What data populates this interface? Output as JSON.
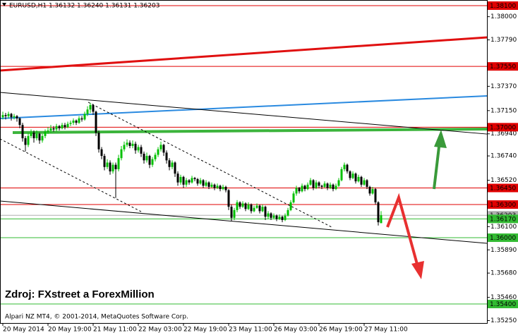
{
  "chart_data": {
    "type": "candlestick",
    "header": "EURUSD,H1  1.36132 1.36240 1.36131 1.36203",
    "annotation": "Zdroj: FXstreet a ForexMillion",
    "copyright": "Alpari NZ MT4, © 2001-2014, MetaQuotes Software Corp.",
    "up_color": "#00c000",
    "down_color": "#000000",
    "xlim": [
      -1,
      171.5
    ],
    "ylim": [
      1.35228,
      1.38151
    ],
    "xticks": [
      {
        "value": 0,
        "label": "20 May 2014"
      },
      {
        "value": 16,
        "label": "20 May 19:00"
      },
      {
        "value": 32,
        "label": "21 May 11:00"
      },
      {
        "value": 48,
        "label": "22 May 03:00"
      },
      {
        "value": 64,
        "label": "22 May 19:00"
      },
      {
        "value": 80,
        "label": "23 May 11:00"
      },
      {
        "value": 96,
        "label": "26 May 03:00"
      },
      {
        "value": 112,
        "label": "26 May 19:00"
      },
      {
        "value": 128,
        "label": "27 May 11:00"
      }
    ],
    "yticks": [
      {
        "value": 1.38,
        "label": "1.38000"
      },
      {
        "value": 1.3779,
        "label": "1.37790"
      },
      {
        "value": 1.3737,
        "label": "1.37370"
      },
      {
        "value": 1.3715,
        "label": "1.37150"
      },
      {
        "value": 1.3694,
        "label": "1.36940"
      },
      {
        "value": 1.3674,
        "label": "1.36740"
      },
      {
        "value": 1.3652,
        "label": "1.36520"
      },
      {
        "value": 1.361,
        "label": "1.36100"
      },
      {
        "value": 1.3589,
        "label": "1.35890"
      },
      {
        "value": 1.3568,
        "label": "1.35680"
      },
      {
        "value": 1.3546,
        "label": "1.35460"
      },
      {
        "value": 1.3525,
        "label": "1.35250"
      }
    ],
    "levels": [
      {
        "value": 1.381,
        "label": "1.38100",
        "color": "#e00000"
      },
      {
        "value": 1.3755,
        "label": "1.37550",
        "color": "#e00000"
      },
      {
        "value": 1.37,
        "label": "1.37000",
        "color": "#e00000"
      },
      {
        "value": 1.3645,
        "label": "1.36450",
        "color": "#e00000"
      },
      {
        "value": 1.363,
        "label": "1.36300",
        "color": "#e00000"
      },
      {
        "value": 1.36203,
        "label": "1.36203",
        "color": "#b0b0b0"
      },
      {
        "value": 1.3617,
        "label": "1.36170",
        "color": "#33bb33"
      },
      {
        "value": 1.36,
        "label": "1.36000",
        "color": "#33bb33"
      },
      {
        "value": 1.354,
        "label": "1.35400",
        "color": "#33bb33"
      }
    ],
    "trendlines": [
      {
        "x": [
          -1,
          171.5
        ],
        "y": [
          1.37513,
          1.37813
        ],
        "color": "#e01010",
        "width": 3,
        "dashed": false
      },
      {
        "x": [
          -1,
          171.5
        ],
        "y": [
          1.37079,
          1.37283
        ],
        "color": "#2a8ae0",
        "width": 2,
        "dashed": false
      },
      {
        "x": [
          3.5,
          171.5
        ],
        "y": [
          1.36951,
          1.36983
        ],
        "color": "#3cb43c",
        "width": 4,
        "dashed": false
      },
      {
        "x": [
          -1,
          171.5
        ],
        "y": [
          1.37315,
          1.36938
        ],
        "color": "#000000",
        "width": 1,
        "dashed": false
      },
      {
        "x": [
          -1,
          171.5
        ],
        "y": [
          1.36332,
          1.35949
        ],
        "color": "#000000",
        "width": 1,
        "dashed": false
      },
      {
        "x": [
          30.25,
          116.5
        ],
        "y": [
          1.37226,
          1.36096
        ],
        "color": "#000000",
        "width": 1,
        "dashed": true
      },
      {
        "x": [
          -1,
          49
        ],
        "y": [
          1.36894,
          1.36236
        ],
        "color": "#000000",
        "width": 1,
        "dashed": true
      }
    ],
    "ohlc": [
      [
        1.3709,
        1.3714,
        1.3707,
        1.3711
      ],
      [
        1.3711,
        1.3713,
        1.3707,
        1.371
      ],
      [
        1.371,
        1.3714,
        1.3708,
        1.3712
      ],
      [
        1.3712,
        1.3713,
        1.3706,
        1.3709
      ],
      [
        1.3709,
        1.3712,
        1.3707,
        1.371
      ],
      [
        1.371,
        1.3711,
        1.3705,
        1.3708
      ],
      [
        1.3708,
        1.3709,
        1.3699,
        1.3702
      ],
      [
        1.3702,
        1.3704,
        1.3687,
        1.369
      ],
      [
        1.369,
        1.3692,
        1.3678,
        1.3684
      ],
      [
        1.3684,
        1.3695,
        1.3682,
        1.3692
      ],
      [
        1.3692,
        1.3698,
        1.369,
        1.3695
      ],
      [
        1.3695,
        1.3697,
        1.3686,
        1.369
      ],
      [
        1.369,
        1.3697,
        1.3688,
        1.3694
      ],
      [
        1.3694,
        1.3695,
        1.3685,
        1.3688
      ],
      [
        1.3688,
        1.3694,
        1.3686,
        1.3692
      ],
      [
        1.3692,
        1.3698,
        1.369,
        1.3696
      ],
      [
        1.3696,
        1.37,
        1.3694,
        1.3697
      ],
      [
        1.3697,
        1.3702,
        1.3695,
        1.3699
      ],
      [
        1.3699,
        1.3701,
        1.3696,
        1.3698
      ],
      [
        1.3698,
        1.3703,
        1.3696,
        1.3701
      ],
      [
        1.3701,
        1.3702,
        1.3697,
        1.3699
      ],
      [
        1.3699,
        1.3704,
        1.3698,
        1.3702
      ],
      [
        1.3702,
        1.3704,
        1.3698,
        1.37
      ],
      [
        1.37,
        1.3705,
        1.3699,
        1.3703
      ],
      [
        1.3703,
        1.3706,
        1.3701,
        1.3704
      ],
      [
        1.3704,
        1.3708,
        1.3702,
        1.3706
      ],
      [
        1.3706,
        1.3707,
        1.3702,
        1.3704
      ],
      [
        1.3704,
        1.371,
        1.3703,
        1.3708
      ],
      [
        1.3708,
        1.371,
        1.3705,
        1.3707
      ],
      [
        1.3707,
        1.3714,
        1.3706,
        1.3712
      ],
      [
        1.3712,
        1.3719,
        1.371,
        1.3716
      ],
      [
        1.3716,
        1.3722,
        1.3713,
        1.372
      ],
      [
        1.372,
        1.3721,
        1.3711,
        1.3714
      ],
      [
        1.3714,
        1.3715,
        1.3692,
        1.3695
      ],
      [
        1.3695,
        1.3697,
        1.3677,
        1.368
      ],
      [
        1.368,
        1.3682,
        1.3671,
        1.3674
      ],
      [
        1.3674,
        1.3676,
        1.3661,
        1.3664
      ],
      [
        1.3664,
        1.3671,
        1.3662,
        1.3668
      ],
      [
        1.3668,
        1.367,
        1.3657,
        1.366
      ],
      [
        1.366,
        1.3668,
        1.3658,
        1.3666
      ],
      [
        1.3666,
        1.3668,
        1.3636,
        1.3662
      ],
      [
        1.3662,
        1.3675,
        1.366,
        1.3672
      ],
      [
        1.3672,
        1.3683,
        1.367,
        1.368
      ],
      [
        1.368,
        1.3687,
        1.3678,
        1.3684
      ],
      [
        1.3684,
        1.3689,
        1.3682,
        1.3686
      ],
      [
        1.3686,
        1.3688,
        1.3681,
        1.3683
      ],
      [
        1.3683,
        1.3688,
        1.3681,
        1.3685
      ],
      [
        1.3685,
        1.3687,
        1.3676,
        1.3679
      ],
      [
        1.3679,
        1.3684,
        1.3677,
        1.3682
      ],
      [
        1.3682,
        1.3684,
        1.3673,
        1.3676
      ],
      [
        1.3676,
        1.3678,
        1.3667,
        1.367
      ],
      [
        1.367,
        1.3677,
        1.3668,
        1.3674
      ],
      [
        1.3674,
        1.3675,
        1.3663,
        1.3666
      ],
      [
        1.3666,
        1.3673,
        1.3664,
        1.3671
      ],
      [
        1.3671,
        1.3677,
        1.3669,
        1.3675
      ],
      [
        1.3675,
        1.3682,
        1.3673,
        1.368
      ],
      [
        1.368,
        1.3687,
        1.3678,
        1.3684
      ],
      [
        1.3684,
        1.3685,
        1.3674,
        1.3677
      ],
      [
        1.3677,
        1.3679,
        1.3667,
        1.367
      ],
      [
        1.367,
        1.3672,
        1.3661,
        1.3664
      ],
      [
        1.3664,
        1.367,
        1.3662,
        1.3668
      ],
      [
        1.3668,
        1.3669,
        1.3655,
        1.3658
      ],
      [
        1.3658,
        1.366,
        1.3647,
        1.365
      ],
      [
        1.365,
        1.3657,
        1.3648,
        1.3655
      ],
      [
        1.3655,
        1.3656,
        1.3645,
        1.3648
      ],
      [
        1.3648,
        1.3654,
        1.3646,
        1.3652
      ],
      [
        1.3652,
        1.3653,
        1.3648,
        1.365
      ],
      [
        1.365,
        1.3656,
        1.3649,
        1.3654
      ],
      [
        1.3654,
        1.3655,
        1.3651,
        1.3653
      ],
      [
        1.3653,
        1.3654,
        1.3647,
        1.3649
      ],
      [
        1.3649,
        1.3654,
        1.3648,
        1.3652
      ],
      [
        1.3652,
        1.3653,
        1.3645,
        1.3647
      ],
      [
        1.3647,
        1.3652,
        1.3646,
        1.365
      ],
      [
        1.365,
        1.3651,
        1.3644,
        1.3646
      ],
      [
        1.3646,
        1.365,
        1.3645,
        1.3648
      ],
      [
        1.3648,
        1.3649,
        1.3643,
        1.3645
      ],
      [
        1.3645,
        1.3649,
        1.3644,
        1.3647
      ],
      [
        1.3647,
        1.3648,
        1.3642,
        1.3644
      ],
      [
        1.3644,
        1.3648,
        1.3643,
        1.3646
      ],
      [
        1.3646,
        1.3647,
        1.3641,
        1.3643
      ],
      [
        1.3643,
        1.3644,
        1.3625,
        1.3628
      ],
      [
        1.3628,
        1.363,
        1.3615,
        1.3618
      ],
      [
        1.3618,
        1.3627,
        1.3616,
        1.3625
      ],
      [
        1.3625,
        1.3634,
        1.3623,
        1.3632
      ],
      [
        1.3632,
        1.3633,
        1.3626,
        1.3628
      ],
      [
        1.3628,
        1.3633,
        1.3627,
        1.3631
      ],
      [
        1.3631,
        1.3632,
        1.3624,
        1.3626
      ],
      [
        1.3626,
        1.3632,
        1.3625,
        1.363
      ],
      [
        1.363,
        1.3631,
        1.3622,
        1.3624
      ],
      [
        1.3624,
        1.3629,
        1.3623,
        1.3627
      ],
      [
        1.3627,
        1.3631,
        1.3626,
        1.3629
      ],
      [
        1.3629,
        1.363,
        1.3622,
        1.3624
      ],
      [
        1.3624,
        1.363,
        1.3623,
        1.3628
      ],
      [
        1.3628,
        1.3629,
        1.3616,
        1.3619
      ],
      [
        1.3619,
        1.3624,
        1.3617,
        1.3622
      ],
      [
        1.3622,
        1.3623,
        1.3616,
        1.3618
      ],
      [
        1.3618,
        1.3622,
        1.3617,
        1.362
      ],
      [
        1.362,
        1.3621,
        1.3615,
        1.3617
      ],
      [
        1.3617,
        1.3621,
        1.3616,
        1.3619
      ],
      [
        1.3619,
        1.362,
        1.3614,
        1.3616
      ],
      [
        1.3616,
        1.3622,
        1.3615,
        1.362
      ],
      [
        1.362,
        1.3627,
        1.3619,
        1.3625
      ],
      [
        1.3625,
        1.3634,
        1.3624,
        1.3632
      ],
      [
        1.3632,
        1.3642,
        1.3631,
        1.364
      ],
      [
        1.364,
        1.3647,
        1.3638,
        1.3645
      ],
      [
        1.3645,
        1.3646,
        1.364,
        1.3642
      ],
      [
        1.3642,
        1.3649,
        1.3641,
        1.3647
      ],
      [
        1.3647,
        1.3648,
        1.3642,
        1.3644
      ],
      [
        1.3644,
        1.365,
        1.3643,
        1.3648
      ],
      [
        1.3648,
        1.3654,
        1.3647,
        1.3652
      ],
      [
        1.3652,
        1.3653,
        1.3643,
        1.3645
      ],
      [
        1.3645,
        1.3652,
        1.3644,
        1.365
      ],
      [
        1.365,
        1.3651,
        1.3645,
        1.3647
      ],
      [
        1.3647,
        1.3648,
        1.3644,
        1.3646
      ],
      [
        1.3646,
        1.3651,
        1.3645,
        1.3649
      ],
      [
        1.3649,
        1.365,
        1.3643,
        1.3645
      ],
      [
        1.3645,
        1.365,
        1.3644,
        1.3648
      ],
      [
        1.3648,
        1.3649,
        1.3642,
        1.3644
      ],
      [
        1.3644,
        1.3649,
        1.3643,
        1.3647
      ],
      [
        1.3647,
        1.3654,
        1.3646,
        1.3652
      ],
      [
        1.3652,
        1.3664,
        1.3651,
        1.3662
      ],
      [
        1.3662,
        1.3668,
        1.366,
        1.3666
      ],
      [
        1.3666,
        1.3667,
        1.3658,
        1.366
      ],
      [
        1.366,
        1.3661,
        1.3652,
        1.3654
      ],
      [
        1.3654,
        1.366,
        1.3653,
        1.3658
      ],
      [
        1.3658,
        1.3659,
        1.3649,
        1.3651
      ],
      [
        1.3651,
        1.3657,
        1.365,
        1.3655
      ],
      [
        1.3655,
        1.3656,
        1.3646,
        1.3648
      ],
      [
        1.3648,
        1.3654,
        1.3647,
        1.3652
      ],
      [
        1.3652,
        1.3653,
        1.3644,
        1.3646
      ],
      [
        1.3646,
        1.3647,
        1.3638,
        1.364
      ],
      [
        1.364,
        1.3646,
        1.3639,
        1.3644
      ],
      [
        1.3644,
        1.3645,
        1.363,
        1.3632
      ],
      [
        1.3632,
        1.3633,
        1.3611,
        1.3614
      ],
      [
        1.36132,
        1.3624,
        1.36131,
        1.36203
      ]
    ]
  }
}
